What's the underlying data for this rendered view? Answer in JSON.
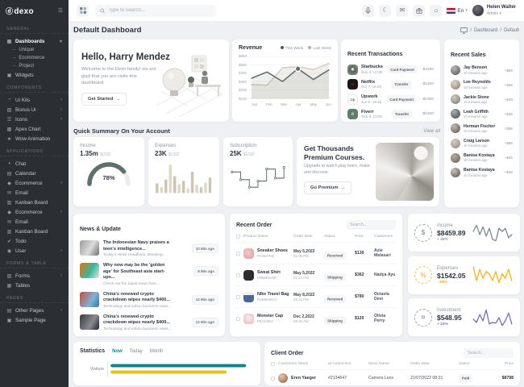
{
  "brand": {
    "mark": "ⓓ",
    "name": "dexo"
  },
  "header": {
    "search_placeholder": "Type to Search...",
    "language": "En",
    "caret": "▾",
    "user": {
      "name": "Helen Walter",
      "role": "Admin"
    },
    "icons": {
      "moon": "☾",
      "mail": "✉",
      "sun": "☼"
    }
  },
  "page": {
    "title": "Default Dashboard",
    "sep": "/",
    "breadcrumb": [
      "Dashboard",
      "Default"
    ]
  },
  "sidebar": {
    "toggle_glyph": "☰",
    "sections": [
      {
        "label": "GENERAL",
        "items": [
          {
            "glyph": "▦",
            "label": "Dashboards",
            "caret": "▾",
            "children": [
              "Unique",
              "Ecommerce",
              "Project"
            ]
          },
          {
            "glyph": "▣",
            "label": "Widgets"
          }
        ]
      },
      {
        "label": "COMPONENTS",
        "items": [
          {
            "glyph": "◔",
            "label": "Ui Kits",
            "caret": "›"
          },
          {
            "glyph": "▧",
            "label": "Bonus Ui",
            "caret": "›"
          },
          {
            "glyph": "☰",
            "label": "Icons",
            "caret": "›"
          },
          {
            "glyph": "▩",
            "label": "Apex Chart"
          },
          {
            "glyph": "★",
            "label": "Wow Animation"
          }
        ]
      },
      {
        "label": "APPLICATIONS",
        "items": [
          {
            "glyph": "◖",
            "label": "Chat"
          },
          {
            "glyph": "▤",
            "label": "Calendar"
          },
          {
            "glyph": "◆",
            "label": "Ecommerce",
            "caret": "›"
          },
          {
            "glyph": "✉",
            "label": "Email"
          },
          {
            "glyph": "▥",
            "label": "Kanban Board"
          },
          {
            "glyph": "◆",
            "label": "Ecommerce",
            "caret": "›"
          },
          {
            "glyph": "✉",
            "label": "Email"
          },
          {
            "glyph": "▥",
            "label": "Kanban Board"
          },
          {
            "glyph": "✔",
            "label": "Todo"
          },
          {
            "glyph": "◉",
            "label": "User",
            "caret": "›"
          }
        ]
      },
      {
        "label": "FORMS & TABLE",
        "items": [
          {
            "glyph": "▨",
            "label": "Forms",
            "caret": "›"
          },
          {
            "glyph": "▦",
            "label": "Tables"
          }
        ]
      },
      {
        "label": "PAGES",
        "items": [
          {
            "glyph": "▤",
            "label": "Other Pages",
            "caret": "›"
          },
          {
            "glyph": "▣",
            "label": "Sample Page"
          }
        ]
      }
    ]
  },
  "welcome": {
    "title": "Hello, Harry Mendez",
    "body": "Welcome to the Dexo family! we are glad that you are visite this dashboard.",
    "cta": "Get Started",
    "cta_icon": "→"
  },
  "revenue": {
    "title": "Revenue"
  },
  "transactions": {
    "title": "Recent Transactions",
    "items": [
      {
        "name": "Starbucks",
        "date": "Nov 4, 12:35",
        "method": "Card Payment",
        "amount": "-$1500",
        "initial": "◉"
      },
      {
        "name": "Netflix",
        "date": "Oct 7, 15:00",
        "method": "Transfer",
        "amount": "-$1500",
        "initial": "N"
      },
      {
        "name": "Upwork",
        "date": "Jun 9, 19:45",
        "method": "Card Payment",
        "amount": "-$1500",
        "initial": "Up"
      },
      {
        "name": "Fiverr",
        "date": "Sep 8, 13:00",
        "method": "Transfer",
        "amount": "-$1500",
        "initial": "fi"
      }
    ]
  },
  "sales": {
    "title": "Recent Sales",
    "items": [
      {
        "name": "Jay Benson",
        "time": "10 minutes ago",
        "amount": "+$89"
      },
      {
        "name": "Lee Reynolds",
        "time": "10 minutes ago",
        "amount": "+$56"
      },
      {
        "name": "Jackie Stone",
        "time": "10 minutes ago",
        "amount": "+$48"
      },
      {
        "name": "Leah Griffith",
        "time": "10 minutes ago",
        "amount": "+$36"
      },
      {
        "name": "Herman Fischer",
        "time": "10 minutes ago",
        "amount": "+$96"
      },
      {
        "name": "Craig Larson",
        "time": "10 minutes ago",
        "amount": "+$85"
      },
      {
        "name": "Banisa Kostaya",
        "time": "10 minutes ago",
        "amount": "+$45"
      },
      {
        "name": "Banisa Kostaya",
        "time": "10 minutes ago",
        "amount": "+$45"
      }
    ]
  },
  "summary": {
    "title": "Quick Summary On Your Account",
    "view_all": "View all",
    "income": {
      "label": "Income",
      "value": "1.35m",
      "currency": "$USD"
    },
    "expenses": {
      "label": "Expenses",
      "value": "23K",
      "currency": "$USD"
    },
    "subscription": {
      "label": "Subscription",
      "value": "25K",
      "currency": "$USD"
    },
    "premium": {
      "title": "Get Thousands Premium Courses.",
      "body": "Upgrade to watch,play learn, make and discover.",
      "cta": "Go Premium",
      "cta_icon": "→"
    }
  },
  "news": {
    "title": "News & Update",
    "items": [
      {
        "title": "The Indonesian Navy praises a teen's intelligence...",
        "subtitle": "Today's News Headlines, Breaking...",
        "time": "10 Min ago"
      },
      {
        "title": "Why now may be the 'golden age' for Southeast asia start-ups...",
        "subtitle": "Check out the latest news from...",
        "time": "8 Min ago"
      },
      {
        "title": "China's renewed crypto crackdown wipes nearly $400...",
        "subtitle": "Technology and indian business news...",
        "time": "12 Min ago"
      },
      {
        "title": "China's renewed crypto crackdown wipes nearly $400...",
        "subtitle": "Technology and indian business news...",
        "time": "12 Min ago"
      }
    ]
  },
  "recent_order": {
    "title": "Recent Order",
    "search_placeholder": "Search...",
    "columns": [
      "Product Name",
      "Order Date",
      "Status",
      "Price",
      "Customers"
    ],
    "rows": [
      {
        "product": "Sneaker Shoes",
        "sku": "PA0647KB",
        "date": "May 5,2022",
        "time": "01:08 PM",
        "status": "Received",
        "price": "$130",
        "customer": "Azie Melasari"
      },
      {
        "product": "Sweat Shirt",
        "sku": "PN8864H2E",
        "date": "May 5,2022",
        "time": "01:24 PM",
        "status": "Shipping",
        "price": "$362",
        "customer": "Nadya Ayu"
      },
      {
        "product": "Nike Travel Bag",
        "sku": "PUB6546GH",
        "date": "May 8,2022",
        "time": "05:32 PM",
        "status": "Received",
        "price": "$780",
        "customer": "Octavia Devi"
      },
      {
        "product": "Monster Cap",
        "sku": "P8A34567",
        "date": "Dec 2,2022",
        "time": "09:26 AM",
        "status": "Shipping",
        "price": "$120",
        "customer": "Olivia Perry"
      }
    ]
  },
  "stat_cards": [
    {
      "label": "Income",
      "value": "$8459.89",
      "delta": "+ 45%",
      "glyph": "$"
    },
    {
      "label": "Expenses",
      "value": "$1542.05",
      "delta": "- 33%",
      "glyph": "%"
    },
    {
      "label": "Investment",
      "value": "$548.95",
      "delta": "+ 23%",
      "glyph": "¤"
    }
  ],
  "statistics": {
    "title": "Statistics",
    "tabs": [
      "Now",
      "Today",
      "Month"
    ]
  },
  "client_order": {
    "title": "Client Order",
    "search_placeholder": "Search...",
    "columns": [
      "Customers Name",
      "Id Customers",
      "Items Name",
      "Order Date",
      "Status",
      "Price"
    ],
    "rows": [
      {
        "name": "Eren Yaeger",
        "id": "#2134647",
        "item": "Camera Lens",
        "date": "21/07/2022 08:21",
        "status": "Paid",
        "price": "$8798"
      }
    ]
  },
  "chart_data": [
    {
      "id": "revenue",
      "type": "line",
      "title": "Revenue",
      "x": [
        "Jan",
        "Feb",
        "Mar",
        "Apr",
        "May",
        "Jun"
      ],
      "yticks": [
        "$600",
        "$500",
        "$400",
        "$300",
        "$200",
        "$100"
      ],
      "ylim": [
        100,
        600
      ],
      "grid": true,
      "legend_position": "top-right",
      "series": [
        {
          "name": "This Week",
          "color": "#5d6b69",
          "fill": "rgba(93,107,105,0.10)",
          "values": [
            340,
            415,
            300,
            455,
            325,
            440
          ]
        },
        {
          "name": "Last Week",
          "color": "#d3cec0",
          "fill": "rgba(214,209,196,0.35)",
          "values": [
            265,
            255,
            465,
            480,
            445,
            520
          ]
        }
      ],
      "marker": {
        "series": 0,
        "index": 3
      }
    },
    {
      "id": "income_gauge",
      "type": "gauge",
      "value": 78,
      "label": "78%",
      "color": "#5f6f6d"
    },
    {
      "id": "expenses_bars",
      "type": "bar",
      "values": [
        30,
        18,
        42,
        88,
        52,
        28,
        38,
        14,
        66,
        26,
        18,
        32,
        48
      ],
      "colors": [
        "#cdc5b4",
        "#ded8ca"
      ]
    },
    {
      "id": "subscription_steps",
      "type": "step-line",
      "color": "#5f6f6d",
      "values": [
        65,
        65,
        40,
        40,
        15,
        15,
        35,
        35,
        75,
        75,
        45,
        45,
        80
      ]
    },
    {
      "id": "income_spark",
      "type": "line",
      "color": "#7d8a90",
      "values": [
        18,
        26,
        14,
        24,
        12,
        22,
        8,
        6,
        22,
        18,
        22,
        10,
        14
      ]
    },
    {
      "id": "expenses_spark",
      "type": "line",
      "color": "#f0b41c",
      "values": [
        20,
        8,
        18,
        10,
        16,
        14,
        8,
        16,
        6,
        14,
        10,
        18,
        8
      ]
    },
    {
      "id": "investment_spark",
      "type": "line",
      "color": "#7a6fb0",
      "values": [
        14,
        10,
        20,
        12,
        26,
        8,
        10,
        9,
        16,
        6,
        12,
        22,
        8
      ]
    },
    {
      "id": "statistics_bars",
      "type": "hbar",
      "category": "Visitors",
      "series": [
        {
          "name": "Now",
          "color": "#17818e",
          "value": 97
        },
        {
          "name": "Today",
          "color": "#eebc1d",
          "value": 83
        }
      ]
    }
  ]
}
